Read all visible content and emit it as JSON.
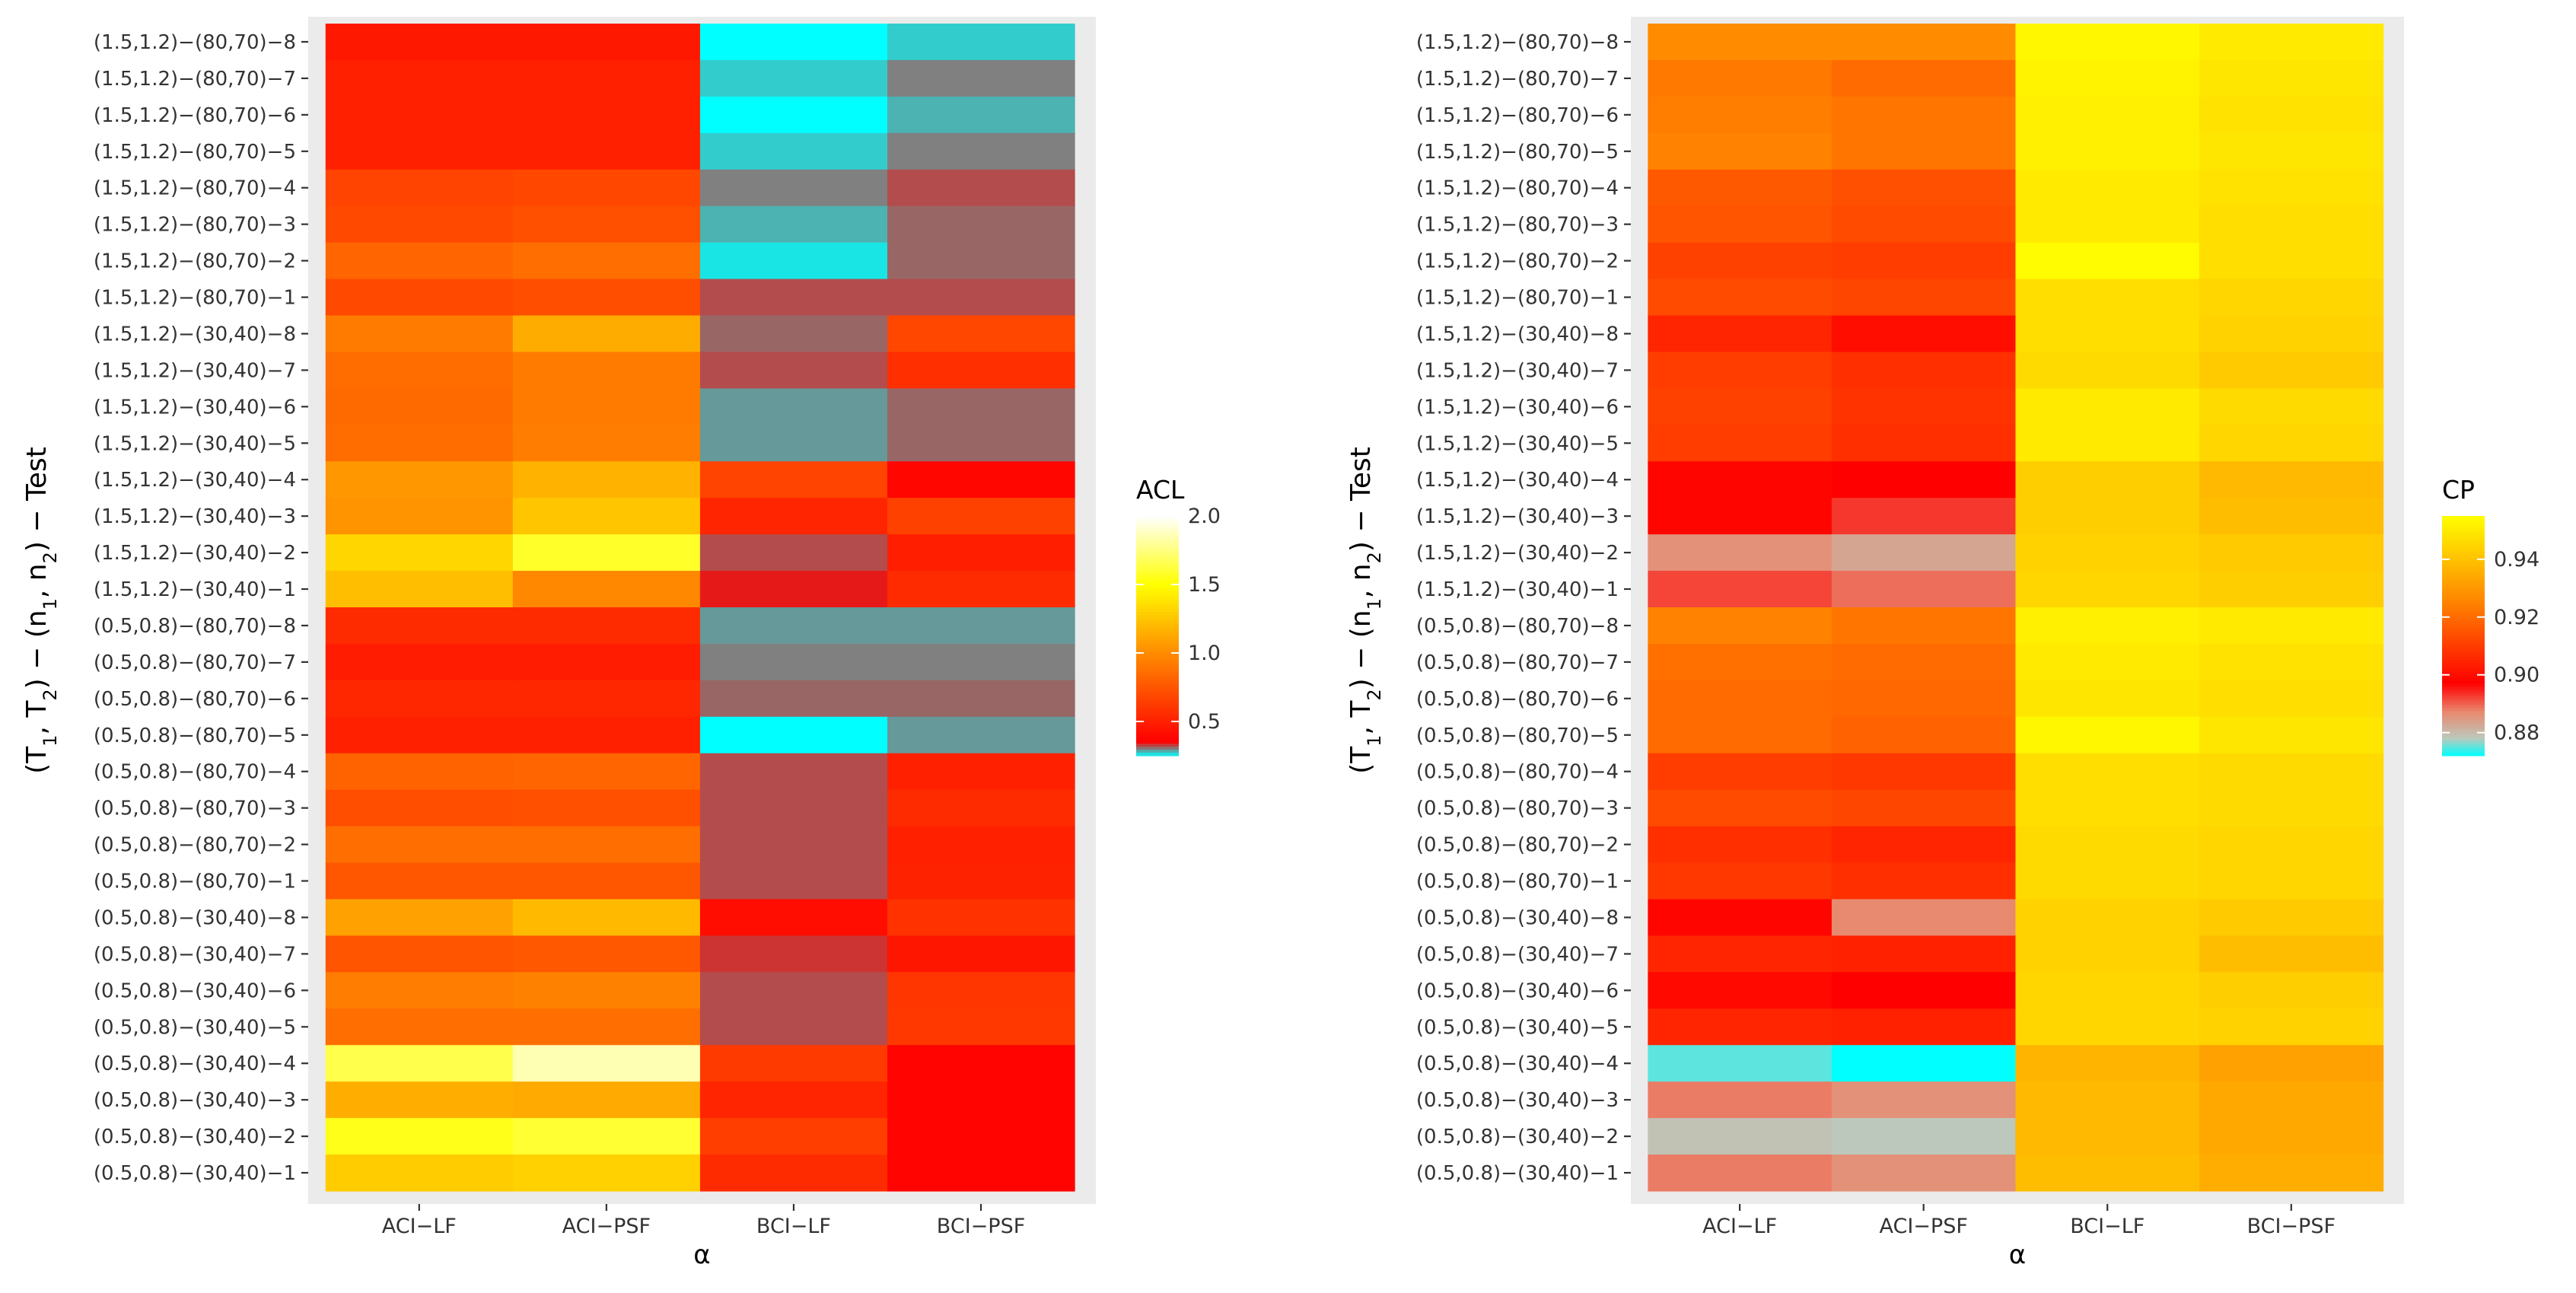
{
  "chart_data": [
    {
      "type": "heatmap",
      "title": "",
      "xlabel": "α",
      "ylabel_parts": [
        "(T",
        "1",
        ", T",
        "2",
        ") − (n",
        "1",
        ", n",
        "2",
        ") − Test"
      ],
      "categories_x": [
        "ACI−LF",
        "ACI−PSF",
        "BCI−LF",
        "BCI−PSF"
      ],
      "categories_y": [
        "(1.5,1.2)−(80,70)−8",
        "(1.5,1.2)−(80,70)−7",
        "(1.5,1.2)−(80,70)−6",
        "(1.5,1.2)−(80,70)−5",
        "(1.5,1.2)−(80,70)−4",
        "(1.5,1.2)−(80,70)−3",
        "(1.5,1.2)−(80,70)−2",
        "(1.5,1.2)−(80,70)−1",
        "(1.5,1.2)−(30,40)−8",
        "(1.5,1.2)−(30,40)−7",
        "(1.5,1.2)−(30,40)−6",
        "(1.5,1.2)−(30,40)−5",
        "(1.5,1.2)−(30,40)−4",
        "(1.5,1.2)−(30,40)−3",
        "(1.5,1.2)−(30,40)−2",
        "(1.5,1.2)−(30,40)−1",
        "(0.5,0.8)−(80,70)−8",
        "(0.5,0.8)−(80,70)−7",
        "(0.5,0.8)−(80,70)−6",
        "(0.5,0.8)−(80,70)−5",
        "(0.5,0.8)−(80,70)−4",
        "(0.5,0.8)−(80,70)−3",
        "(0.5,0.8)−(80,70)−2",
        "(0.5,0.8)−(80,70)−1",
        "(0.5,0.8)−(30,40)−8",
        "(0.5,0.8)−(30,40)−7",
        "(0.5,0.8)−(30,40)−6",
        "(0.5,0.8)−(30,40)−5",
        "(0.5,0.8)−(30,40)−4",
        "(0.5,0.8)−(30,40)−3",
        "(0.5,0.8)−(30,40)−2",
        "(0.5,0.8)−(30,40)−1"
      ],
      "legend_title": "ACL",
      "legend_ticks": [
        2.0,
        1.5,
        1.0,
        0.5
      ],
      "legend_tick_labels": [
        "2.0",
        "1.5",
        "1.0",
        "0.5"
      ],
      "value_range": [
        0.25,
        2.0
      ],
      "color_stops": [
        {
          "v": 0.25,
          "color": "#00ffff"
        },
        {
          "v": 0.35,
          "color": "#ff0000"
        },
        {
          "v": 1.0,
          "color": "#ff8c00"
        },
        {
          "v": 1.5,
          "color": "#ffff00"
        },
        {
          "v": 2.0,
          "color": "#ffffff"
        }
      ],
      "values": [
        [
          0.46,
          0.46,
          0.25,
          0.27
        ],
        [
          0.5,
          0.5,
          0.27,
          0.3
        ],
        [
          0.5,
          0.5,
          0.25,
          0.28
        ],
        [
          0.5,
          0.5,
          0.27,
          0.3
        ],
        [
          0.66,
          0.68,
          0.3,
          0.32
        ],
        [
          0.69,
          0.72,
          0.28,
          0.31
        ],
        [
          0.82,
          0.86,
          0.26,
          0.31
        ],
        [
          0.69,
          0.71,
          0.32,
          0.32
        ],
        [
          0.92,
          1.14,
          0.31,
          0.68
        ],
        [
          0.85,
          0.92,
          0.32,
          0.57
        ],
        [
          0.84,
          0.92,
          0.29,
          0.31
        ],
        [
          0.85,
          0.93,
          0.29,
          0.31
        ],
        [
          1.05,
          1.17,
          0.66,
          0.38
        ],
        [
          1.03,
          1.25,
          0.52,
          0.65
        ],
        [
          1.32,
          1.58,
          0.32,
          0.49
        ],
        [
          1.22,
          0.98,
          0.34,
          0.55
        ],
        [
          0.55,
          0.55,
          0.29,
          0.29
        ],
        [
          0.48,
          0.48,
          0.3,
          0.3
        ],
        [
          0.53,
          0.53,
          0.31,
          0.31
        ],
        [
          0.5,
          0.5,
          0.25,
          0.29
        ],
        [
          0.81,
          0.82,
          0.32,
          0.5
        ],
        [
          0.71,
          0.72,
          0.32,
          0.55
        ],
        [
          0.86,
          0.86,
          0.32,
          0.5
        ],
        [
          0.75,
          0.75,
          0.32,
          0.51
        ],
        [
          1.09,
          1.2,
          0.41,
          0.58
        ],
        [
          0.74,
          0.76,
          0.33,
          0.45
        ],
        [
          0.93,
          0.95,
          0.32,
          0.6
        ],
        [
          0.86,
          0.86,
          0.32,
          0.61
        ],
        [
          1.65,
          1.85,
          0.62,
          0.37
        ],
        [
          1.15,
          1.13,
          0.52,
          0.37
        ],
        [
          1.55,
          1.6,
          0.64,
          0.37
        ],
        [
          1.28,
          1.3,
          0.55,
          0.37
        ]
      ]
    },
    {
      "type": "heatmap",
      "title": "",
      "xlabel": "α",
      "ylabel_parts": [
        "(T",
        "1",
        ", T",
        "2",
        ") − (n",
        "1",
        ", n",
        "2",
        ") − Test"
      ],
      "categories_x": [
        "ACI−LF",
        "ACI−PSF",
        "BCI−LF",
        "BCI−PSF"
      ],
      "categories_y": [
        "(1.5,1.2)−(80,70)−8",
        "(1.5,1.2)−(80,70)−7",
        "(1.5,1.2)−(80,70)−6",
        "(1.5,1.2)−(80,70)−5",
        "(1.5,1.2)−(80,70)−4",
        "(1.5,1.2)−(80,70)−3",
        "(1.5,1.2)−(80,70)−2",
        "(1.5,1.2)−(80,70)−1",
        "(1.5,1.2)−(30,40)−8",
        "(1.5,1.2)−(30,40)−7",
        "(1.5,1.2)−(30,40)−6",
        "(1.5,1.2)−(30,40)−5",
        "(1.5,1.2)−(30,40)−4",
        "(1.5,1.2)−(30,40)−3",
        "(1.5,1.2)−(30,40)−2",
        "(1.5,1.2)−(30,40)−1",
        "(0.5,0.8)−(80,70)−8",
        "(0.5,0.8)−(80,70)−7",
        "(0.5,0.8)−(80,70)−6",
        "(0.5,0.8)−(80,70)−5",
        "(0.5,0.8)−(80,70)−4",
        "(0.5,0.8)−(80,70)−3",
        "(0.5,0.8)−(80,70)−2",
        "(0.5,0.8)−(80,70)−1",
        "(0.5,0.8)−(30,40)−8",
        "(0.5,0.8)−(30,40)−7",
        "(0.5,0.8)−(30,40)−6",
        "(0.5,0.8)−(30,40)−5",
        "(0.5,0.8)−(30,40)−4",
        "(0.5,0.8)−(30,40)−3",
        "(0.5,0.8)−(30,40)−2",
        "(0.5,0.8)−(30,40)−1"
      ],
      "legend_title": "CP",
      "legend_ticks": [
        0.94,
        0.92,
        0.9,
        0.88
      ],
      "legend_tick_labels": [
        "0.94",
        "0.92",
        "0.90",
        "0.88"
      ],
      "value_range": [
        0.872,
        0.955
      ],
      "color_stops": [
        {
          "v": 0.872,
          "color": "#00ffff"
        },
        {
          "v": 0.878,
          "color": "#bcc8bc"
        },
        {
          "v": 0.887,
          "color": "#e88a70"
        },
        {
          "v": 0.897,
          "color": "#ff0000"
        },
        {
          "v": 0.927,
          "color": "#ff8c00"
        },
        {
          "v": 0.955,
          "color": "#ffff00"
        }
      ],
      "values": [
        [
          0.927,
          0.927,
          0.953,
          0.95
        ],
        [
          0.923,
          0.92,
          0.952,
          0.949
        ],
        [
          0.924,
          0.922,
          0.951,
          0.948
        ],
        [
          0.925,
          0.922,
          0.951,
          0.949
        ],
        [
          0.916,
          0.914,
          0.95,
          0.948
        ],
        [
          0.915,
          0.913,
          0.95,
          0.947
        ],
        [
          0.911,
          0.91,
          0.954,
          0.947
        ],
        [
          0.913,
          0.912,
          0.947,
          0.945
        ],
        [
          0.905,
          0.9,
          0.947,
          0.944
        ],
        [
          0.91,
          0.907,
          0.946,
          0.942
        ],
        [
          0.911,
          0.908,
          0.95,
          0.946
        ],
        [
          0.91,
          0.907,
          0.95,
          0.945
        ],
        [
          0.898,
          0.897,
          0.943,
          0.938
        ],
        [
          0.898,
          0.893,
          0.943,
          0.939
        ],
        [
          0.886,
          0.883,
          0.944,
          0.942
        ],
        [
          0.892,
          0.889,
          0.945,
          0.943
        ],
        [
          0.925,
          0.922,
          0.951,
          0.95
        ],
        [
          0.921,
          0.92,
          0.95,
          0.948
        ],
        [
          0.92,
          0.919,
          0.949,
          0.947
        ],
        [
          0.92,
          0.918,
          0.953,
          0.949
        ],
        [
          0.91,
          0.909,
          0.947,
          0.946
        ],
        [
          0.913,
          0.912,
          0.947,
          0.946
        ],
        [
          0.907,
          0.905,
          0.946,
          0.945
        ],
        [
          0.909,
          0.907,
          0.946,
          0.945
        ],
        [
          0.898,
          0.887,
          0.944,
          0.942
        ],
        [
          0.905,
          0.904,
          0.944,
          0.939
        ],
        [
          0.899,
          0.897,
          0.945,
          0.943
        ],
        [
          0.905,
          0.904,
          0.945,
          0.944
        ],
        [
          0.875,
          0.872,
          0.937,
          0.932
        ],
        [
          0.888,
          0.886,
          0.938,
          0.934
        ],
        [
          0.879,
          0.878,
          0.938,
          0.934
        ],
        [
          0.888,
          0.886,
          0.939,
          0.935
        ]
      ]
    }
  ]
}
